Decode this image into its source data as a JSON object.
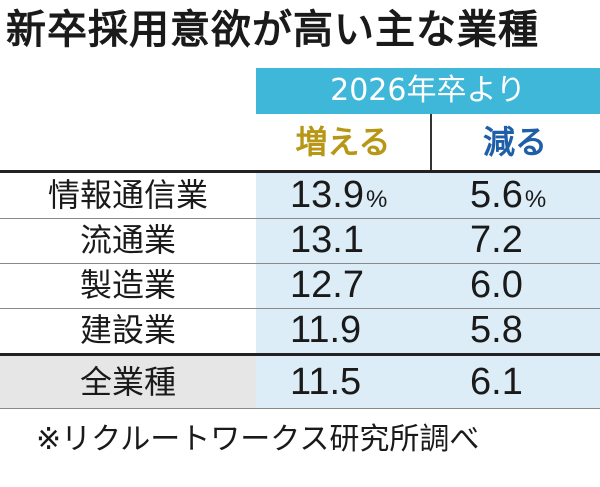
{
  "title": "新卒採用意欲が高い主な業種",
  "source": "※リクルートワークス研究所調べ",
  "chart_data": {
    "type": "table",
    "group_header": "2026年卒より",
    "columns": [
      "増える",
      "減る"
    ],
    "unit": "%",
    "rows": [
      {
        "label": "情報通信業",
        "values": [
          "13.9",
          "5.6"
        ]
      },
      {
        "label": "流通業",
        "values": [
          "13.1",
          "7.2"
        ]
      },
      {
        "label": "製造業",
        "values": [
          "12.7",
          "6.0"
        ]
      },
      {
        "label": "建設業",
        "values": [
          "11.9",
          "5.8"
        ]
      },
      {
        "label": "全業種",
        "values": [
          "11.5",
          "6.1"
        ]
      }
    ]
  },
  "colors": {
    "header_band": "#3fb7d8",
    "increase_header": "#b89716",
    "decrease_header": "#1f5fa8",
    "data_background": "#dcedf7",
    "total_label_background": "#e6e6e6"
  }
}
